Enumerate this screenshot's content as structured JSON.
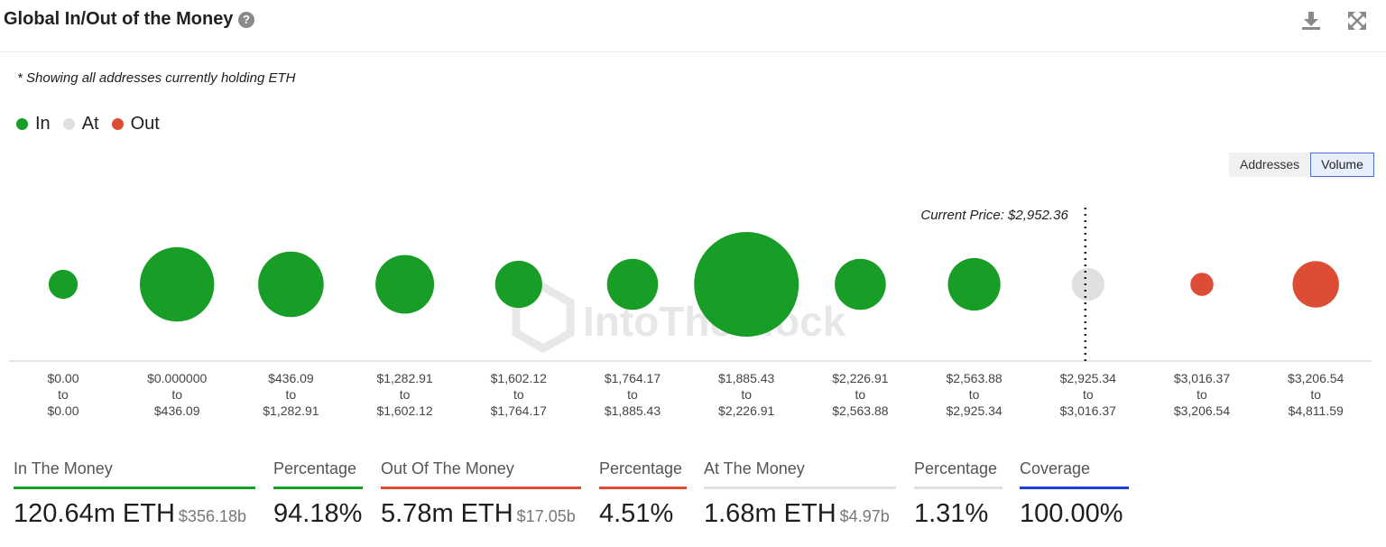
{
  "header": {
    "title": "Global In/Out of the Money",
    "help_glyph": "?",
    "icons": [
      "question-icon",
      "download-icon",
      "expand-icon"
    ]
  },
  "note": "* Showing all addresses currently holding ETH",
  "legend": [
    {
      "label": "In",
      "color": "#189e27"
    },
    {
      "label": "At",
      "color": "#e0e0e0"
    },
    {
      "label": "Out",
      "color": "#dd4c35"
    }
  ],
  "toggle": {
    "options": [
      "Addresses",
      "Volume"
    ],
    "selected": "Volume"
  },
  "watermark": "IntoTheBlock",
  "chart_data": {
    "type": "bubble",
    "measure": "Volume",
    "current_price_label": "Current Price: $2,952.36",
    "current_price": 2952.36,
    "colors": {
      "in": "#189e27",
      "at": "#e0e0e0",
      "out": "#dd4c35"
    },
    "buckets": [
      {
        "from": "$0.00",
        "to": "$0.00",
        "status": "in",
        "volume_m": 1.1
      },
      {
        "from": "$0.000000",
        "to": "$436.09",
        "status": "in",
        "volume_m": 7.2
      },
      {
        "from": "$436.09",
        "to": "$1,282.91",
        "status": "in",
        "volume_m": 5.6
      },
      {
        "from": "$1,282.91",
        "to": "$1,602.12",
        "status": "in",
        "volume_m": 4.5
      },
      {
        "from": "$1,602.12",
        "to": "$1,764.17",
        "status": "in",
        "volume_m": 2.9
      },
      {
        "from": "$1,764.17",
        "to": "$1,885.43",
        "status": "in",
        "volume_m": 3.4
      },
      {
        "from": "$1,885.43",
        "to": "$2,226.91",
        "status": "in",
        "volume_m": 14.3
      },
      {
        "from": "$2,226.91",
        "to": "$2,563.88",
        "status": "in",
        "volume_m": 3.4
      },
      {
        "from": "$2,563.88",
        "to": "$2,925.34",
        "status": "in",
        "volume_m": 3.6
      },
      {
        "from": "$2,925.34",
        "to": "$3,016.37",
        "status": "at",
        "volume_m": 1.4
      },
      {
        "from": "$3,016.37",
        "to": "$3,206.54",
        "status": "out",
        "volume_m": 0.7
      },
      {
        "from": "$3,206.54",
        "to": "$4,811.59",
        "status": "out",
        "volume_m": 2.8
      }
    ],
    "connector": "to"
  },
  "stats": [
    {
      "label": "In The Money",
      "value": "120.64m ETH",
      "sub": "$356.18b",
      "color": "#189e27"
    },
    {
      "label": "Percentage",
      "value": "94.18%",
      "sub": "",
      "color": "#189e27"
    },
    {
      "label": "Out Of The Money",
      "value": "5.78m ETH",
      "sub": "$17.05b",
      "color": "#dd4c35"
    },
    {
      "label": "Percentage",
      "value": "4.51%",
      "sub": "",
      "color": "#dd4c35"
    },
    {
      "label": "At The Money",
      "value": "1.68m ETH",
      "sub": "$4.97b",
      "color": "#e0e0e0"
    },
    {
      "label": "Percentage",
      "value": "1.31%",
      "sub": "",
      "color": "#e0e0e0"
    },
    {
      "label": "Coverage",
      "value": "100.00%",
      "sub": "",
      "color": "#1f3fd6"
    }
  ]
}
